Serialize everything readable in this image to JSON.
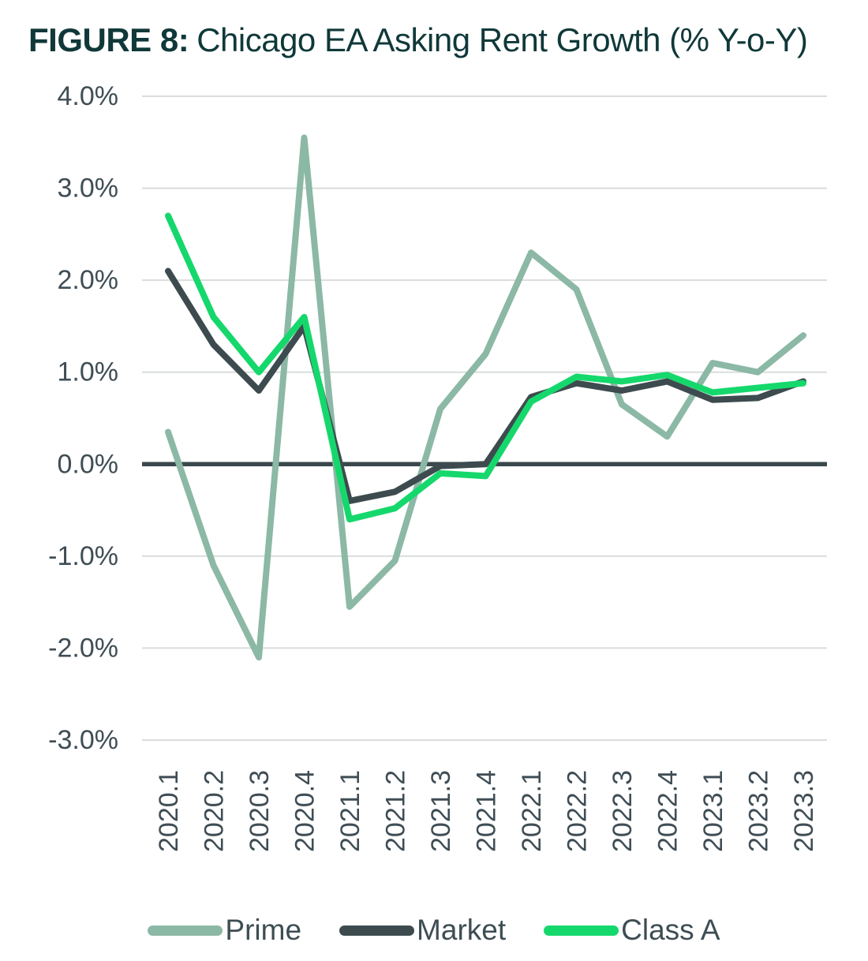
{
  "title": {
    "label": "FIGURE 8:",
    "text": "Chicago EA Asking Rent Growth (% Y-o-Y)"
  },
  "colors": {
    "title": "#103839",
    "axis_text": "#3F4D55",
    "gridline": "#D9DDDC",
    "zero_line": "#3A484C",
    "background": "#FFFFFF"
  },
  "chart_data": {
    "type": "line",
    "title": "FIGURE 8: Chicago EA Asking Rent Growth (% Y-o-Y)",
    "xlabel": "",
    "ylabel": "% Y-o-Y",
    "grid": true,
    "legend_position": "bottom",
    "x_categories": [
      "2020.1",
      "2020.2",
      "2020.3",
      "2020.4",
      "2021.1",
      "2021.2",
      "2021.3",
      "2021.4",
      "2022.1",
      "2022.2",
      "2022.3",
      "2022.4",
      "2023.1",
      "2023.2",
      "2023.3"
    ],
    "y_axis": {
      "min": -3.0,
      "max": 4.0,
      "tick_interval": 1.0,
      "zero_line": true,
      "ticks": [
        {
          "label": "4.0%",
          "value": 4
        },
        {
          "label": "3.0%",
          "value": 3
        },
        {
          "label": "2.0%",
          "value": 2
        },
        {
          "label": "1.0%",
          "value": 1
        },
        {
          "label": "0.0%",
          "value": 0
        },
        {
          "label": "-1.0%",
          "value": -1
        },
        {
          "label": "-2.0%",
          "value": -2
        },
        {
          "label": "-3.0%",
          "value": -3
        }
      ]
    },
    "series": [
      {
        "name": "Prime",
        "color": "#8CB8A6",
        "values": [
          0.35,
          -1.1,
          -2.1,
          3.55,
          -1.55,
          -1.05,
          0.6,
          1.2,
          2.3,
          1.9,
          0.65,
          0.3,
          1.1,
          1.0,
          1.4
        ]
      },
      {
        "name": "Market",
        "color": "#3D4B4F",
        "values": [
          2.1,
          1.3,
          0.8,
          1.5,
          -0.4,
          -0.3,
          -0.02,
          0.0,
          0.73,
          0.88,
          0.8,
          0.9,
          0.7,
          0.72,
          0.9
        ]
      },
      {
        "name": "Class A",
        "color": "#15D86C",
        "values": [
          2.7,
          1.6,
          1.0,
          1.6,
          -0.6,
          -0.48,
          -0.1,
          -0.13,
          0.68,
          0.95,
          0.9,
          0.97,
          0.78,
          0.83,
          0.88
        ]
      }
    ]
  }
}
